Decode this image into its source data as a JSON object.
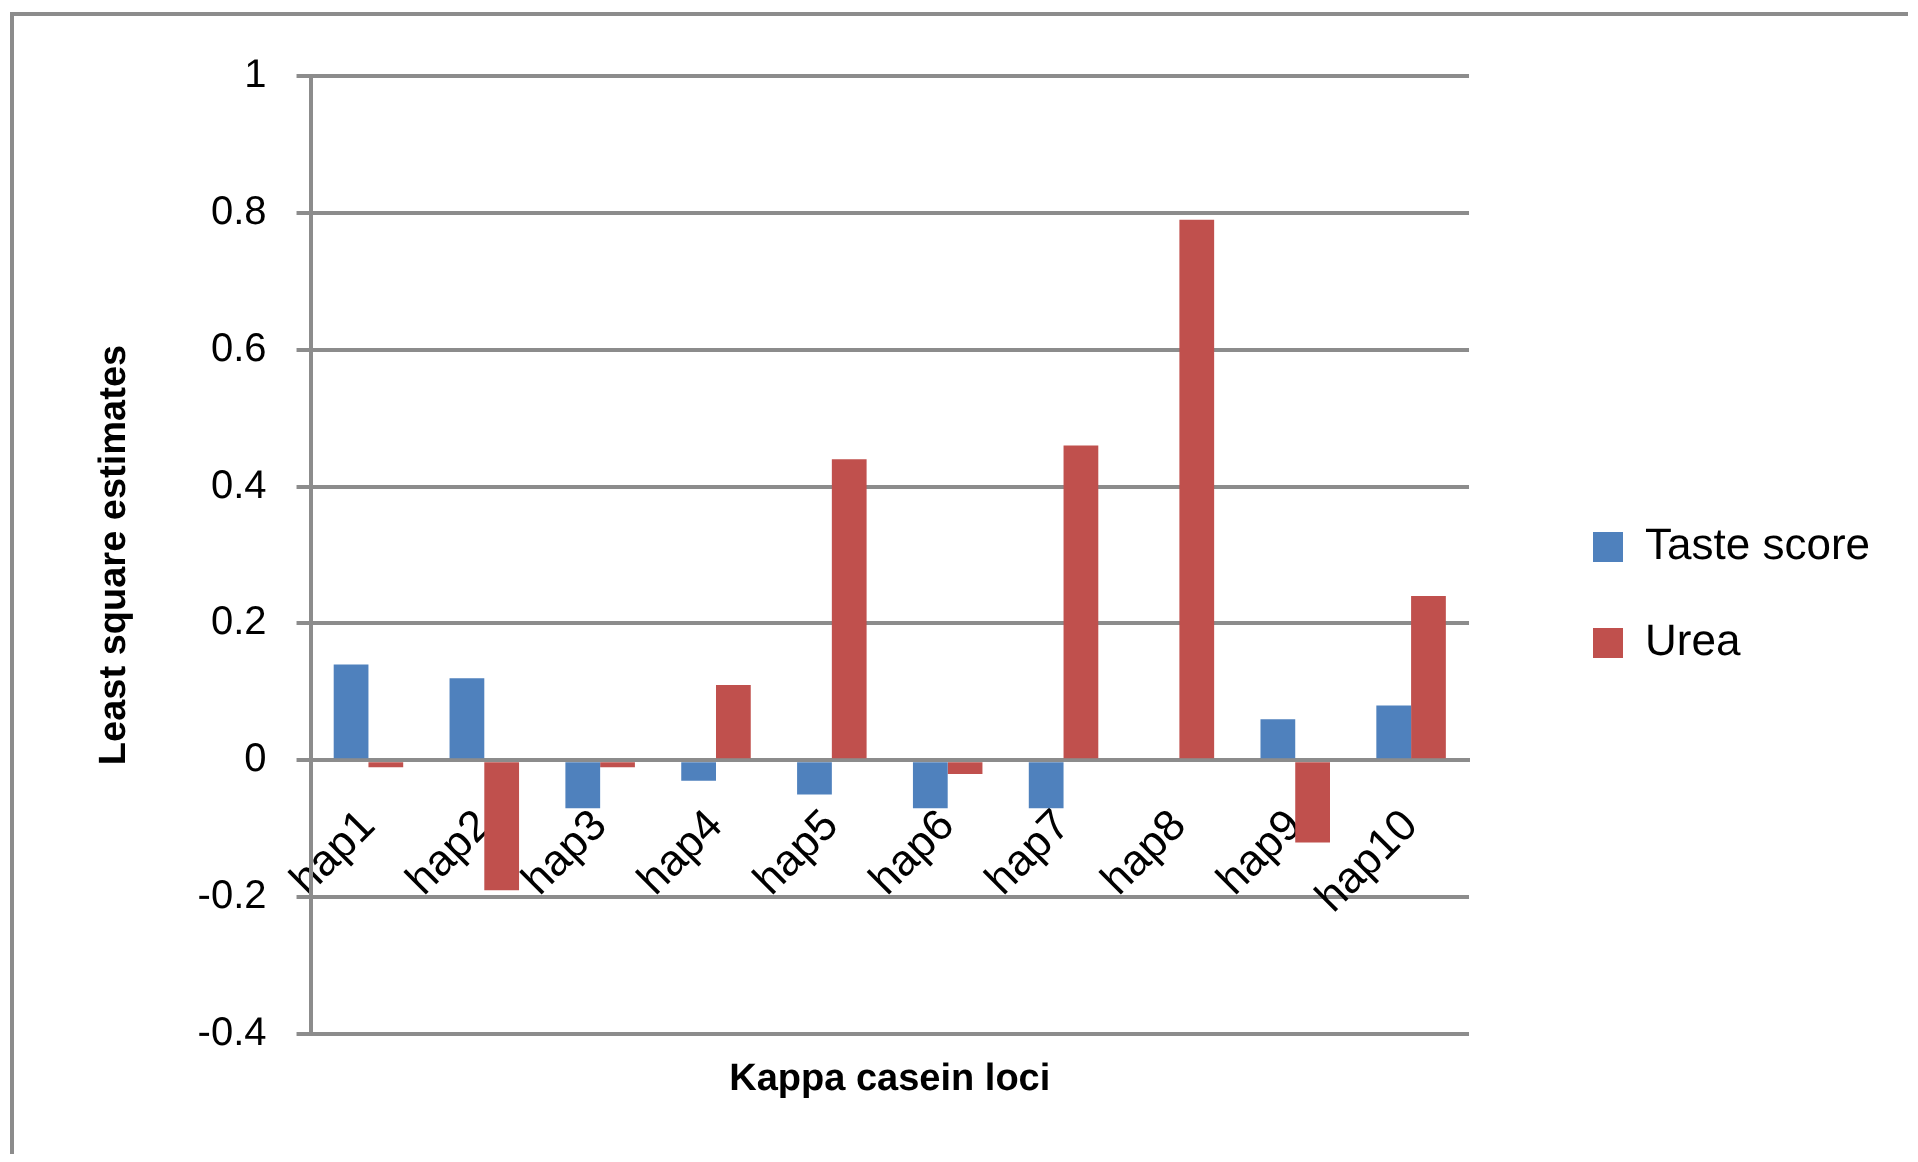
{
  "chart_data": {
    "type": "bar",
    "xlabel": "Kappa casein loci",
    "ylabel": "Least square estimates",
    "categories": [
      "hap1",
      "hap2",
      "hap3",
      "hap4",
      "hap5",
      "hap6",
      "hap7",
      "hap8",
      "hap9",
      "hap10"
    ],
    "series": [
      {
        "name": "Taste score",
        "color": "#4f81bd",
        "values": [
          0.14,
          0.12,
          -0.07,
          -0.03,
          -0.05,
          -0.07,
          -0.07,
          null,
          0.06,
          0.08
        ]
      },
      {
        "name": "Urea",
        "color": "#c0504d",
        "values": [
          -0.01,
          -0.19,
          -0.01,
          0.11,
          0.44,
          -0.02,
          0.46,
          0.79,
          -0.12,
          0.24
        ]
      }
    ],
    "ylim": [
      -0.4,
      1
    ],
    "yticks": [
      -0.4,
      -0.2,
      0,
      0.2,
      0.4,
      0.6,
      0.8,
      1
    ],
    "grid": "y",
    "legend": "right"
  }
}
